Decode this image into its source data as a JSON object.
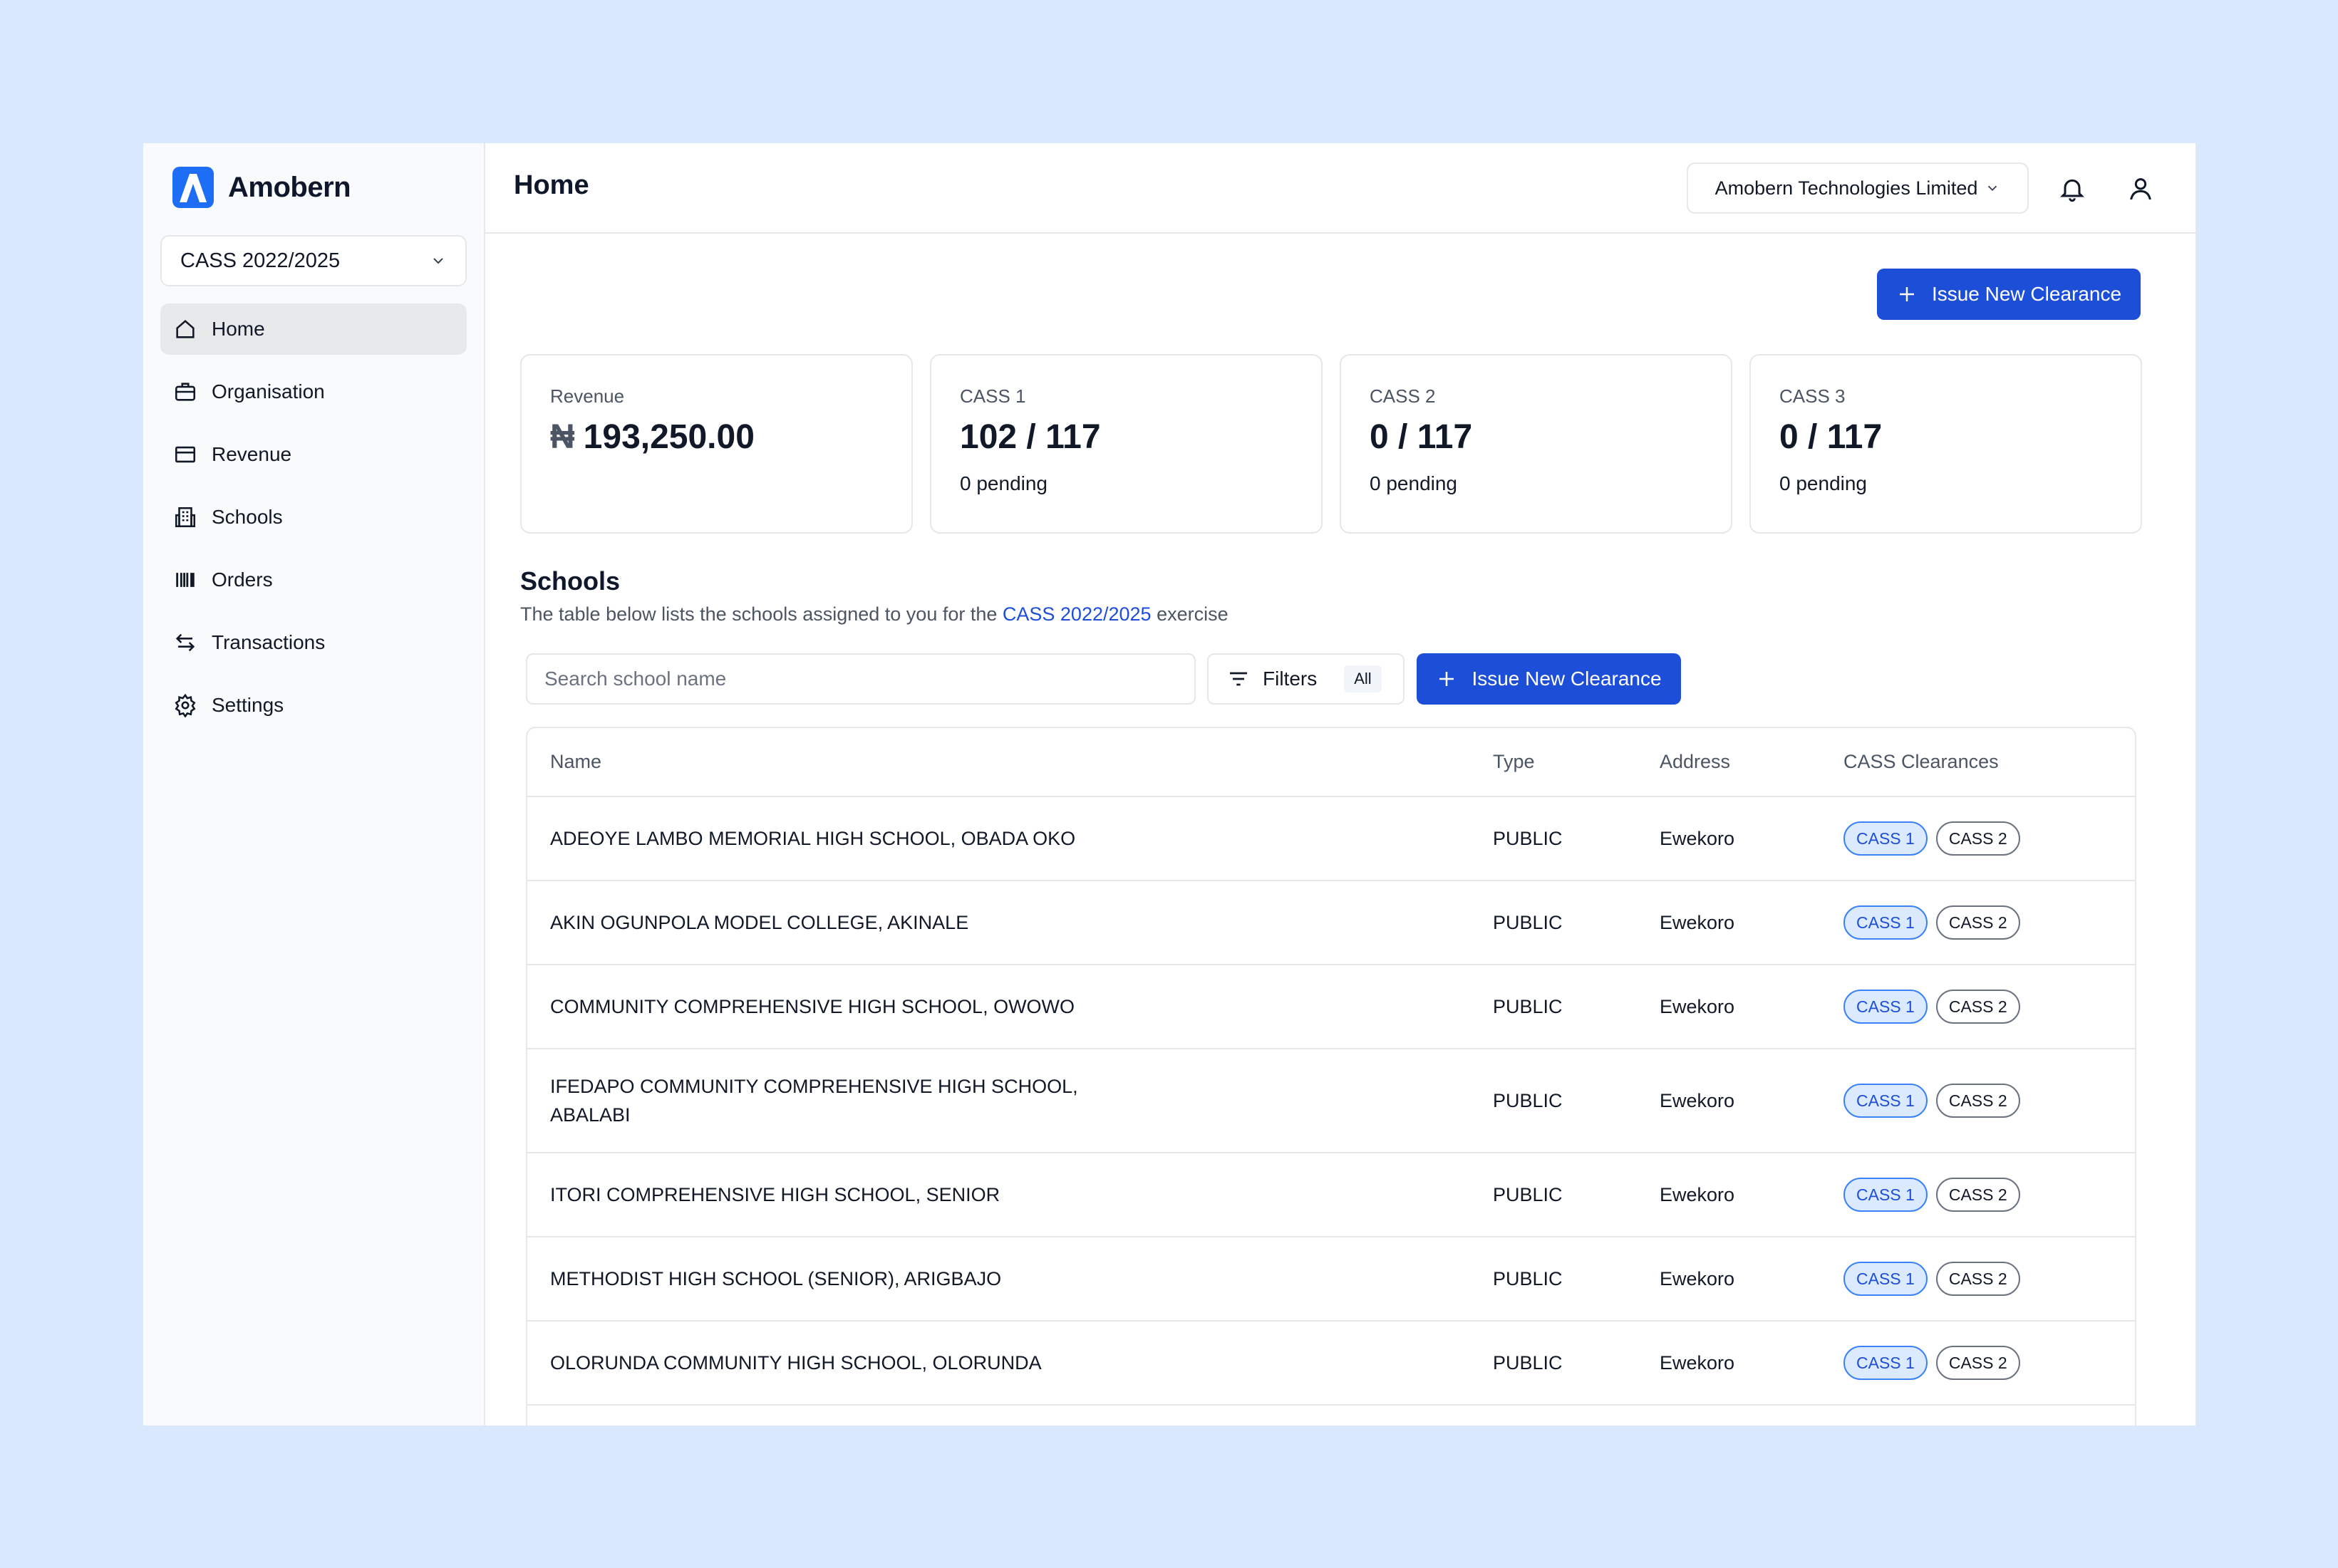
{
  "brand": {
    "name": "Amobern",
    "logo_color": "#1d6ef5"
  },
  "period_select": {
    "value": "CASS 2022/2025"
  },
  "sidebar": {
    "items": [
      {
        "label": "Home",
        "icon": "home-icon",
        "active": true
      },
      {
        "label": "Organisation",
        "icon": "briefcase-icon",
        "active": false
      },
      {
        "label": "Revenue",
        "icon": "card-icon",
        "active": false
      },
      {
        "label": "Schools",
        "icon": "building-icon",
        "active": false
      },
      {
        "label": "Orders",
        "icon": "barcode-icon",
        "active": false
      },
      {
        "label": "Transactions",
        "icon": "swap-icon",
        "active": false
      },
      {
        "label": "Settings",
        "icon": "gear-icon",
        "active": false
      }
    ]
  },
  "header": {
    "title": "Home",
    "org_select": "Amobern Technologies Limited"
  },
  "actions": {
    "issue_label": "Issue New Clearance"
  },
  "stats": [
    {
      "label": "Revenue",
      "currency": "₦",
      "value": "193,250.00",
      "sub": ""
    },
    {
      "label": "CASS 1",
      "currency": "",
      "value": "102 / 117",
      "sub": "0 pending"
    },
    {
      "label": "CASS 2",
      "currency": "",
      "value": "0 / 117",
      "sub": "0 pending"
    },
    {
      "label": "CASS 3",
      "currency": "",
      "value": "0 / 117",
      "sub": "0 pending"
    }
  ],
  "schools": {
    "title": "Schools",
    "desc_before": "The table below lists the schools assigned to you for the ",
    "desc_highlight": "CASS 2022/2025",
    "desc_after": " exercise",
    "search_placeholder": "Search school name",
    "filters_label": "Filters",
    "filters_badge": "All",
    "issue_label": "Issue New Clearance",
    "columns": [
      "Name",
      "Type",
      "Address",
      "CASS Clearances"
    ],
    "rows": [
      {
        "name": "ADEOYE LAMBO MEMORIAL HIGH SCHOOL, OBADA OKO",
        "type": "PUBLIC",
        "address": "Ewekoro",
        "clearances": [
          "CASS 1",
          "CASS 2"
        ]
      },
      {
        "name": "AKIN OGUNPOLA MODEL COLLEGE, AKINALE",
        "type": "PUBLIC",
        "address": "Ewekoro",
        "clearances": [
          "CASS 1",
          "CASS 2"
        ]
      },
      {
        "name": "COMMUNITY COMPREHENSIVE HIGH SCHOOL, OWOWO",
        "type": "PUBLIC",
        "address": "Ewekoro",
        "clearances": [
          "CASS 1",
          "CASS 2"
        ]
      },
      {
        "name": "IFEDAPO COMMUNITY COMPREHENSIVE HIGH SCHOOL, ABALABI",
        "type": "PUBLIC",
        "address": "Ewekoro",
        "clearances": [
          "CASS 1",
          "CASS 2"
        ]
      },
      {
        "name": "ITORI COMPREHENSIVE HIGH SCHOOL, SENIOR",
        "type": "PUBLIC",
        "address": "Ewekoro",
        "clearances": [
          "CASS 1",
          "CASS 2"
        ]
      },
      {
        "name": "METHODIST HIGH SCHOOL (SENIOR), ARIGBAJO",
        "type": "PUBLIC",
        "address": "Ewekoro",
        "clearances": [
          "CASS 1",
          "CASS 2"
        ]
      },
      {
        "name": "OLORUNDA COMMUNITY HIGH SCHOOL, OLORUNDA",
        "type": "PUBLIC",
        "address": "Ewekoro",
        "clearances": [
          "CASS 1",
          "CASS 2"
        ]
      }
    ]
  },
  "colors": {
    "accent": "#1d4ed8",
    "background": "#d9e8fd",
    "sidebar_bg": "#f8fafc"
  }
}
